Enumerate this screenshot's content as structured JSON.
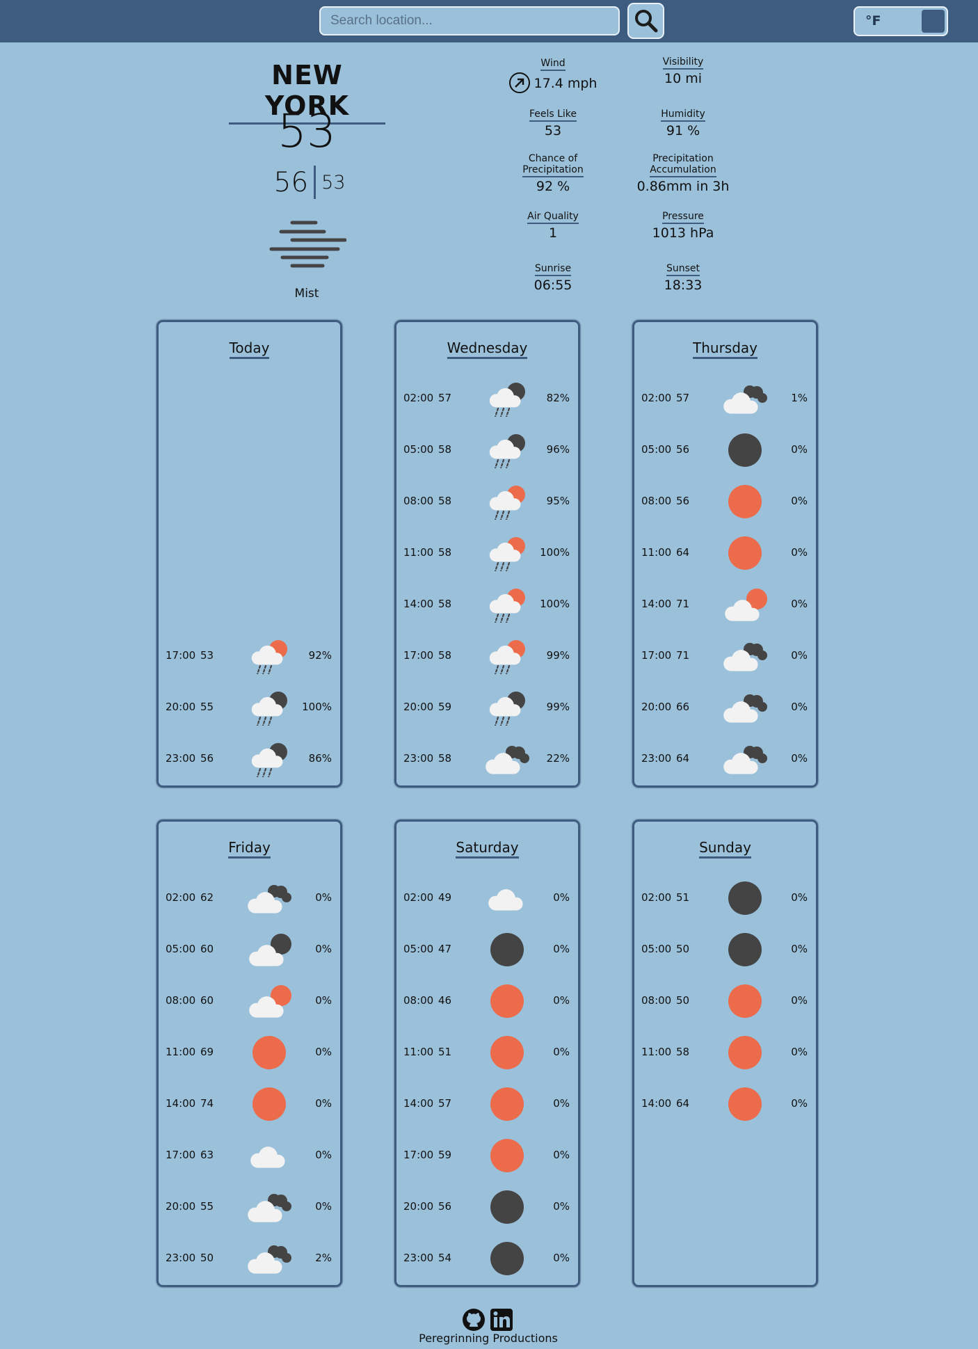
{
  "search": {
    "placeholder": "Search location..."
  },
  "unit_toggle": {
    "label": "°F"
  },
  "current": {
    "city": "NEW YORK",
    "temp": "53",
    "high": "56",
    "low": "53",
    "condition": "Mist",
    "condition_icon": "mist-icon"
  },
  "details": {
    "wind": {
      "label": "Wind",
      "value": "17.4 mph"
    },
    "visibility": {
      "label": "Visibility",
      "value": "10 mi"
    },
    "feels_like": {
      "label": "Feels Like",
      "value": "53"
    },
    "humidity": {
      "label": "Humidity",
      "value": "91 %"
    },
    "precip_chance": {
      "label_1": "Chance of",
      "label_2": "Precipitation",
      "value": "92 %"
    },
    "precip_accum": {
      "label_1": "Precipitation",
      "label_2": "Accumulation",
      "value": "0.86mm in 3h"
    },
    "air_quality": {
      "label": "Air Quality",
      "value": "1"
    },
    "pressure": {
      "label": "Pressure",
      "value": "1013 hPa"
    },
    "sunrise": {
      "label": "Sunrise",
      "value": "06:55"
    },
    "sunset": {
      "label": "Sunset",
      "value": "18:33"
    }
  },
  "forecast": [
    {
      "day": "Today",
      "rows": [
        {
          "time": "17:00",
          "temp": "53",
          "icon": "rain-day",
          "pct": "92%"
        },
        {
          "time": "20:00",
          "temp": "55",
          "icon": "rain-night",
          "pct": "100%"
        },
        {
          "time": "23:00",
          "temp": "56",
          "icon": "rain-night",
          "pct": "86%"
        }
      ]
    },
    {
      "day": "Wednesday",
      "rows": [
        {
          "time": "02:00",
          "temp": "57",
          "icon": "rain-night",
          "pct": "82%"
        },
        {
          "time": "05:00",
          "temp": "58",
          "icon": "rain-night",
          "pct": "96%"
        },
        {
          "time": "08:00",
          "temp": "58",
          "icon": "rain-day",
          "pct": "95%"
        },
        {
          "time": "11:00",
          "temp": "58",
          "icon": "rain-day",
          "pct": "100%"
        },
        {
          "time": "14:00",
          "temp": "58",
          "icon": "rain-day",
          "pct": "100%"
        },
        {
          "time": "17:00",
          "temp": "58",
          "icon": "rain-day",
          "pct": "99%"
        },
        {
          "time": "20:00",
          "temp": "59",
          "icon": "rain-night",
          "pct": "99%"
        },
        {
          "time": "23:00",
          "temp": "58",
          "icon": "clouds",
          "pct": "22%"
        }
      ]
    },
    {
      "day": "Thursday",
      "rows": [
        {
          "time": "02:00",
          "temp": "57",
          "icon": "clouds",
          "pct": "1%"
        },
        {
          "time": "05:00",
          "temp": "56",
          "icon": "clear-night",
          "pct": "0%"
        },
        {
          "time": "08:00",
          "temp": "56",
          "icon": "clear-day",
          "pct": "0%"
        },
        {
          "time": "11:00",
          "temp": "64",
          "icon": "clear-day",
          "pct": "0%"
        },
        {
          "time": "14:00",
          "temp": "71",
          "icon": "partly-cloudy-day",
          "pct": "0%"
        },
        {
          "time": "17:00",
          "temp": "71",
          "icon": "clouds",
          "pct": "0%"
        },
        {
          "time": "20:00",
          "temp": "66",
          "icon": "clouds",
          "pct": "0%"
        },
        {
          "time": "23:00",
          "temp": "64",
          "icon": "clouds",
          "pct": "0%"
        }
      ]
    },
    {
      "day": "Friday",
      "rows": [
        {
          "time": "02:00",
          "temp": "62",
          "icon": "clouds",
          "pct": "0%"
        },
        {
          "time": "05:00",
          "temp": "60",
          "icon": "partly-cloudy-night",
          "pct": "0%"
        },
        {
          "time": "08:00",
          "temp": "60",
          "icon": "partly-cloudy-day",
          "pct": "0%"
        },
        {
          "time": "11:00",
          "temp": "69",
          "icon": "clear-day",
          "pct": "0%"
        },
        {
          "time": "14:00",
          "temp": "74",
          "icon": "clear-day",
          "pct": "0%"
        },
        {
          "time": "17:00",
          "temp": "63",
          "icon": "cloud",
          "pct": "0%"
        },
        {
          "time": "20:00",
          "temp": "55",
          "icon": "clouds",
          "pct": "0%"
        },
        {
          "time": "23:00",
          "temp": "50",
          "icon": "clouds",
          "pct": "2%"
        }
      ]
    },
    {
      "day": "Saturday",
      "rows": [
        {
          "time": "02:00",
          "temp": "49",
          "icon": "cloud",
          "pct": "0%"
        },
        {
          "time": "05:00",
          "temp": "47",
          "icon": "clear-night",
          "pct": "0%"
        },
        {
          "time": "08:00",
          "temp": "46",
          "icon": "clear-day",
          "pct": "0%"
        },
        {
          "time": "11:00",
          "temp": "51",
          "icon": "clear-day",
          "pct": "0%"
        },
        {
          "time": "14:00",
          "temp": "57",
          "icon": "clear-day",
          "pct": "0%"
        },
        {
          "time": "17:00",
          "temp": "59",
          "icon": "clear-day",
          "pct": "0%"
        },
        {
          "time": "20:00",
          "temp": "56",
          "icon": "clear-night",
          "pct": "0%"
        },
        {
          "time": "23:00",
          "temp": "54",
          "icon": "clear-night",
          "pct": "0%"
        }
      ]
    },
    {
      "day": "Sunday",
      "rows": [
        {
          "time": "02:00",
          "temp": "51",
          "icon": "clear-night",
          "pct": "0%"
        },
        {
          "time": "05:00",
          "temp": "50",
          "icon": "clear-night",
          "pct": "0%"
        },
        {
          "time": "08:00",
          "temp": "50",
          "icon": "clear-day",
          "pct": "0%"
        },
        {
          "time": "11:00",
          "temp": "58",
          "icon": "clear-day",
          "pct": "0%"
        },
        {
          "time": "14:00",
          "temp": "64",
          "icon": "clear-day",
          "pct": "0%"
        }
      ]
    }
  ],
  "footer": {
    "text": "Peregrinning Productions",
    "icons": [
      "github-icon",
      "linkedin-icon"
    ]
  },
  "colors": {
    "background": "#9ac0da",
    "header": "#3e5c80",
    "sun": "#ec6b4a",
    "moon": "#444444",
    "cloud": "#f2f2f2"
  }
}
